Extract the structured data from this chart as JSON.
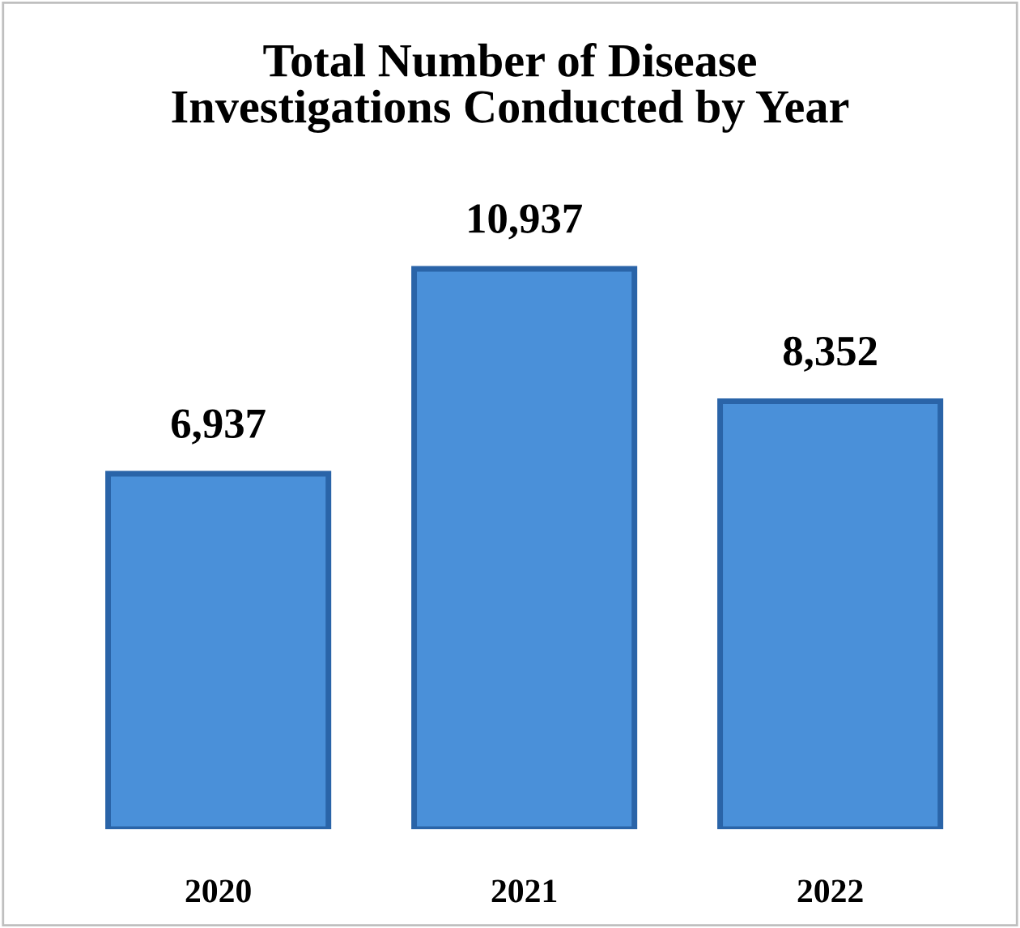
{
  "chart_data": {
    "type": "bar",
    "title": "Total Number of Disease\nInvestigations Conducted by Year",
    "categories": [
      "2020",
      "2021",
      "2022"
    ],
    "values": [
      6937,
      10937,
      8352
    ],
    "value_labels": [
      "6,937",
      "10,937",
      "8,352"
    ],
    "color": "#4a90d9",
    "grid": false,
    "legend": false
  }
}
